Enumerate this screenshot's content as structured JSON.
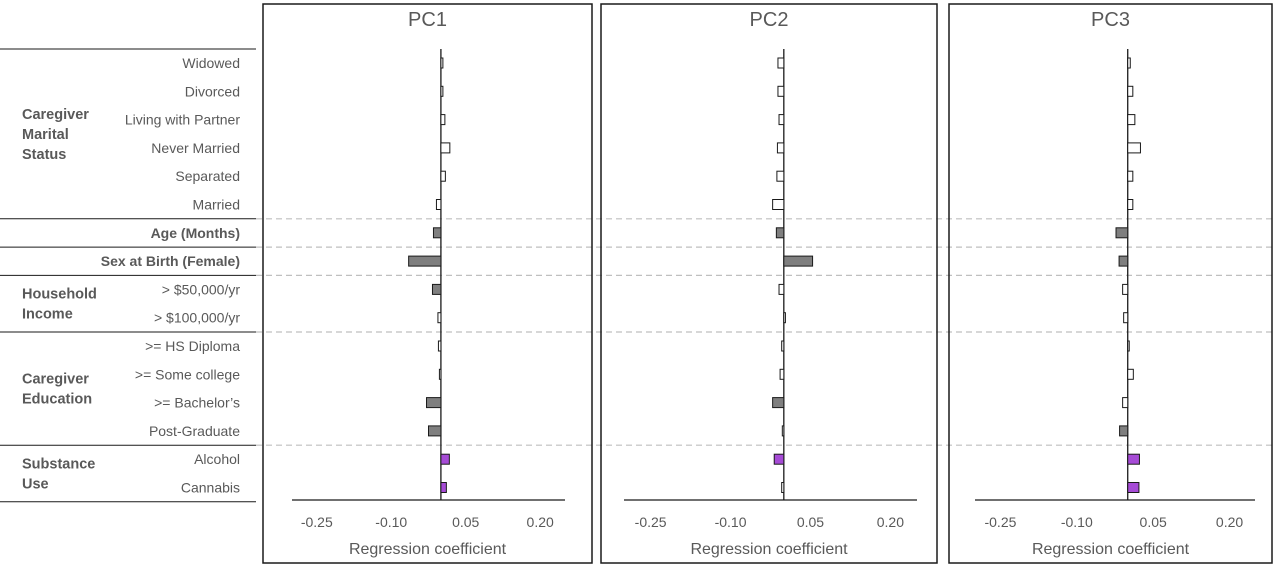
{
  "colors": {
    "white_bar": "#ffffff",
    "gray_bar": "#7f7f7f",
    "purple_bar": "#a64bd6",
    "stroke": "#1a1a1a",
    "dashed": "#bfbfbf"
  },
  "rows": [
    {
      "label": "Widowed",
      "group": "Caregiver Marital Status",
      "style": "white",
      "bold": false
    },
    {
      "label": "Divorced",
      "group": "Caregiver Marital Status",
      "style": "white",
      "bold": false
    },
    {
      "label": "Living with Partner",
      "group": "Caregiver Marital Status",
      "style": "white",
      "bold": false
    },
    {
      "label": "Never Married",
      "group": "Caregiver Marital Status",
      "style": "white",
      "bold": false
    },
    {
      "label": "Separated",
      "group": "Caregiver Marital Status",
      "style": "white",
      "bold": false
    },
    {
      "label": "Married",
      "group": "Caregiver Marital Status",
      "style": "white",
      "bold": false
    },
    {
      "label": "Age (Months)",
      "group": "",
      "style": "gray",
      "bold": true
    },
    {
      "label": "Sex at Birth (Female)",
      "group": "",
      "style": "gray",
      "bold": true
    },
    {
      "label": "> $50,000/yr",
      "group": "Household Income",
      "style": "mixed",
      "bold": false
    },
    {
      "label": "> $100,000/yr",
      "group": "Household Income",
      "style": "white",
      "bold": false
    },
    {
      "label": ">= HS Diploma",
      "group": "Caregiver Education",
      "style": "white",
      "bold": false
    },
    {
      "label": ">= Some college",
      "group": "Caregiver Education",
      "style": "white",
      "bold": false
    },
    {
      "label": ">= Bachelor’s",
      "group": "Caregiver Education",
      "style": "mixed",
      "bold": false
    },
    {
      "label": "Post-Graduate",
      "group": "Caregiver Education",
      "style": "mixed",
      "bold": false
    },
    {
      "label": "Alcohol",
      "group": "Substance Use",
      "style": "mixed",
      "bold": false
    },
    {
      "label": "Cannabis",
      "group": "Substance Use",
      "style": "mixed",
      "bold": false
    }
  ],
  "groups": [
    {
      "lines": [
        "Caregiver",
        "Marital",
        "Status"
      ],
      "first_row": 0,
      "last_row": 5
    },
    {
      "lines": [
        "Household",
        "Income"
      ],
      "first_row": 8,
      "last_row": 9
    },
    {
      "lines": [
        "Caregiver",
        "Education"
      ],
      "first_row": 10,
      "last_row": 13
    },
    {
      "lines": [
        "Substance",
        "Use"
      ],
      "first_row": 14,
      "last_row": 15
    }
  ],
  "separators_after_rows": [
    5,
    6,
    7,
    9,
    13
  ],
  "chart_data": [
    {
      "type": "bar",
      "orientation": "horizontal",
      "title": "PC1",
      "xlabel": "Regression coefficient",
      "xlim": [
        -0.3,
        0.25
      ],
      "ticks": [
        -0.25,
        -0.1,
        0.05,
        0.2
      ],
      "tick_labels": [
        "-0.25",
        "-0.10",
        "0.05",
        "0.20"
      ],
      "values": [
        0.004,
        0.004,
        0.008,
        0.018,
        0.009,
        -0.009,
        -0.015,
        -0.065,
        -0.017,
        -0.006,
        -0.005,
        -0.003,
        -0.029,
        -0.025,
        0.017,
        0.011
      ],
      "fills": [
        "white",
        "white",
        "white",
        "white",
        "white",
        "white",
        "gray",
        "gray",
        "gray",
        "white",
        "white",
        "white",
        "gray",
        "gray",
        "purple",
        "purple"
      ]
    },
    {
      "type": "bar",
      "orientation": "horizontal",
      "title": "PC2",
      "xlabel": "Regression coefficient",
      "xlim": [
        -0.3,
        0.25
      ],
      "ticks": [
        -0.25,
        -0.1,
        0.05,
        0.2
      ],
      "tick_labels": [
        "-0.25",
        "-0.10",
        "0.05",
        "0.20"
      ],
      "values": [
        -0.011,
        -0.011,
        -0.009,
        -0.012,
        -0.013,
        -0.021,
        -0.014,
        0.054,
        -0.009,
        0.003,
        -0.004,
        -0.007,
        -0.021,
        -0.001,
        -0.018,
        -0.004
      ],
      "fills": [
        "white",
        "white",
        "white",
        "white",
        "white",
        "white",
        "gray",
        "gray",
        "white",
        "white",
        "white",
        "white",
        "gray",
        "white",
        "purple",
        "white"
      ]
    },
    {
      "type": "bar",
      "orientation": "horizontal",
      "title": "PC3",
      "xlabel": "Regression coefficient",
      "xlim": [
        -0.3,
        0.25
      ],
      "ticks": [
        -0.25,
        -0.1,
        0.05,
        0.2
      ],
      "tick_labels": [
        "-0.25",
        "-0.10",
        "0.05",
        "0.20"
      ],
      "values": [
        0.005,
        0.01,
        0.014,
        0.025,
        0.01,
        0.01,
        -0.023,
        -0.017,
        -0.01,
        -0.008,
        0.001,
        0.011,
        -0.01,
        -0.016,
        0.023,
        0.022
      ],
      "fills": [
        "white",
        "white",
        "white",
        "white",
        "white",
        "white",
        "gray",
        "gray",
        "white",
        "white",
        "white",
        "white",
        "white",
        "gray",
        "purple",
        "purple"
      ]
    }
  ]
}
